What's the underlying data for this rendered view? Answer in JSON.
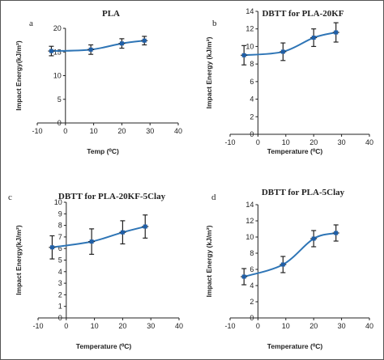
{
  "chart_data": [
    {
      "type": "line",
      "letter": "a",
      "title": "PLA",
      "xlabel": "Temp (⁰C)",
      "ylabel": "Impact Energy(kJ/m²)",
      "xlim": [
        -10,
        40
      ],
      "ylim": [
        0,
        20
      ],
      "xticks": [
        "-10",
        "0",
        "10",
        "20",
        "30",
        "40"
      ],
      "yticks": [
        "0",
        "5",
        "10",
        "15",
        "20"
      ],
      "x": [
        -5,
        9,
        20,
        28
      ],
      "y": [
        15.2,
        15.5,
        16.8,
        17.4
      ],
      "yerr": [
        1.0,
        1.0,
        1.0,
        0.9
      ],
      "grid": false
    },
    {
      "type": "line",
      "letter": "b",
      "title": "DBTT for PLA-20KF",
      "xlabel": "Temperature (⁰C)",
      "ylabel": "Impact Energy (kJ/m²)",
      "xlim": [
        -10,
        40
      ],
      "ylim": [
        0,
        14
      ],
      "xticks": [
        "-10",
        "0",
        "10",
        "20",
        "30",
        "40"
      ],
      "yticks": [
        "0",
        "2",
        "4",
        "6",
        "8",
        "10",
        "12",
        "14"
      ],
      "x": [
        -5,
        9,
        20,
        28
      ],
      "y": [
        9.0,
        9.4,
        11.0,
        11.6
      ],
      "yerr": [
        1.1,
        1.0,
        1.0,
        1.1
      ],
      "grid": false
    },
    {
      "type": "line",
      "letter": "c",
      "title": "DBTT for PLA-20KF-5Clay",
      "xlabel": "Temperature (⁰C)",
      "ylabel": "Impact Energy(kJ/m²)",
      "xlim": [
        -10,
        40
      ],
      "ylim": [
        0,
        10
      ],
      "xticks": [
        "-10",
        "0",
        "10",
        "20",
        "30",
        "40"
      ],
      "yticks": [
        "0",
        "1",
        "2",
        "3",
        "4",
        "5",
        "6",
        "7",
        "8",
        "9",
        "10"
      ],
      "x": [
        -5,
        9,
        20,
        28
      ],
      "y": [
        6.1,
        6.6,
        7.4,
        7.9
      ],
      "yerr": [
        1.0,
        1.1,
        1.0,
        1.0
      ],
      "grid": false
    },
    {
      "type": "line",
      "letter": "d",
      "title": "DBTT for PLA-5Clay",
      "xlabel": "Temperature (⁰C)",
      "ylabel": "Impact Energy (kJ/m²)",
      "xlim": [
        -10,
        40
      ],
      "ylim": [
        0,
        14
      ],
      "xticks": [
        "-10",
        "0",
        "10",
        "20",
        "30",
        "40"
      ],
      "yticks": [
        "0",
        "2",
        "4",
        "6",
        "8",
        "10",
        "12",
        "14"
      ],
      "x": [
        -5,
        9,
        20,
        28
      ],
      "y": [
        5.1,
        6.6,
        9.8,
        10.5
      ],
      "yerr": [
        1.0,
        1.0,
        1.0,
        1.0
      ],
      "grid": false
    }
  ]
}
